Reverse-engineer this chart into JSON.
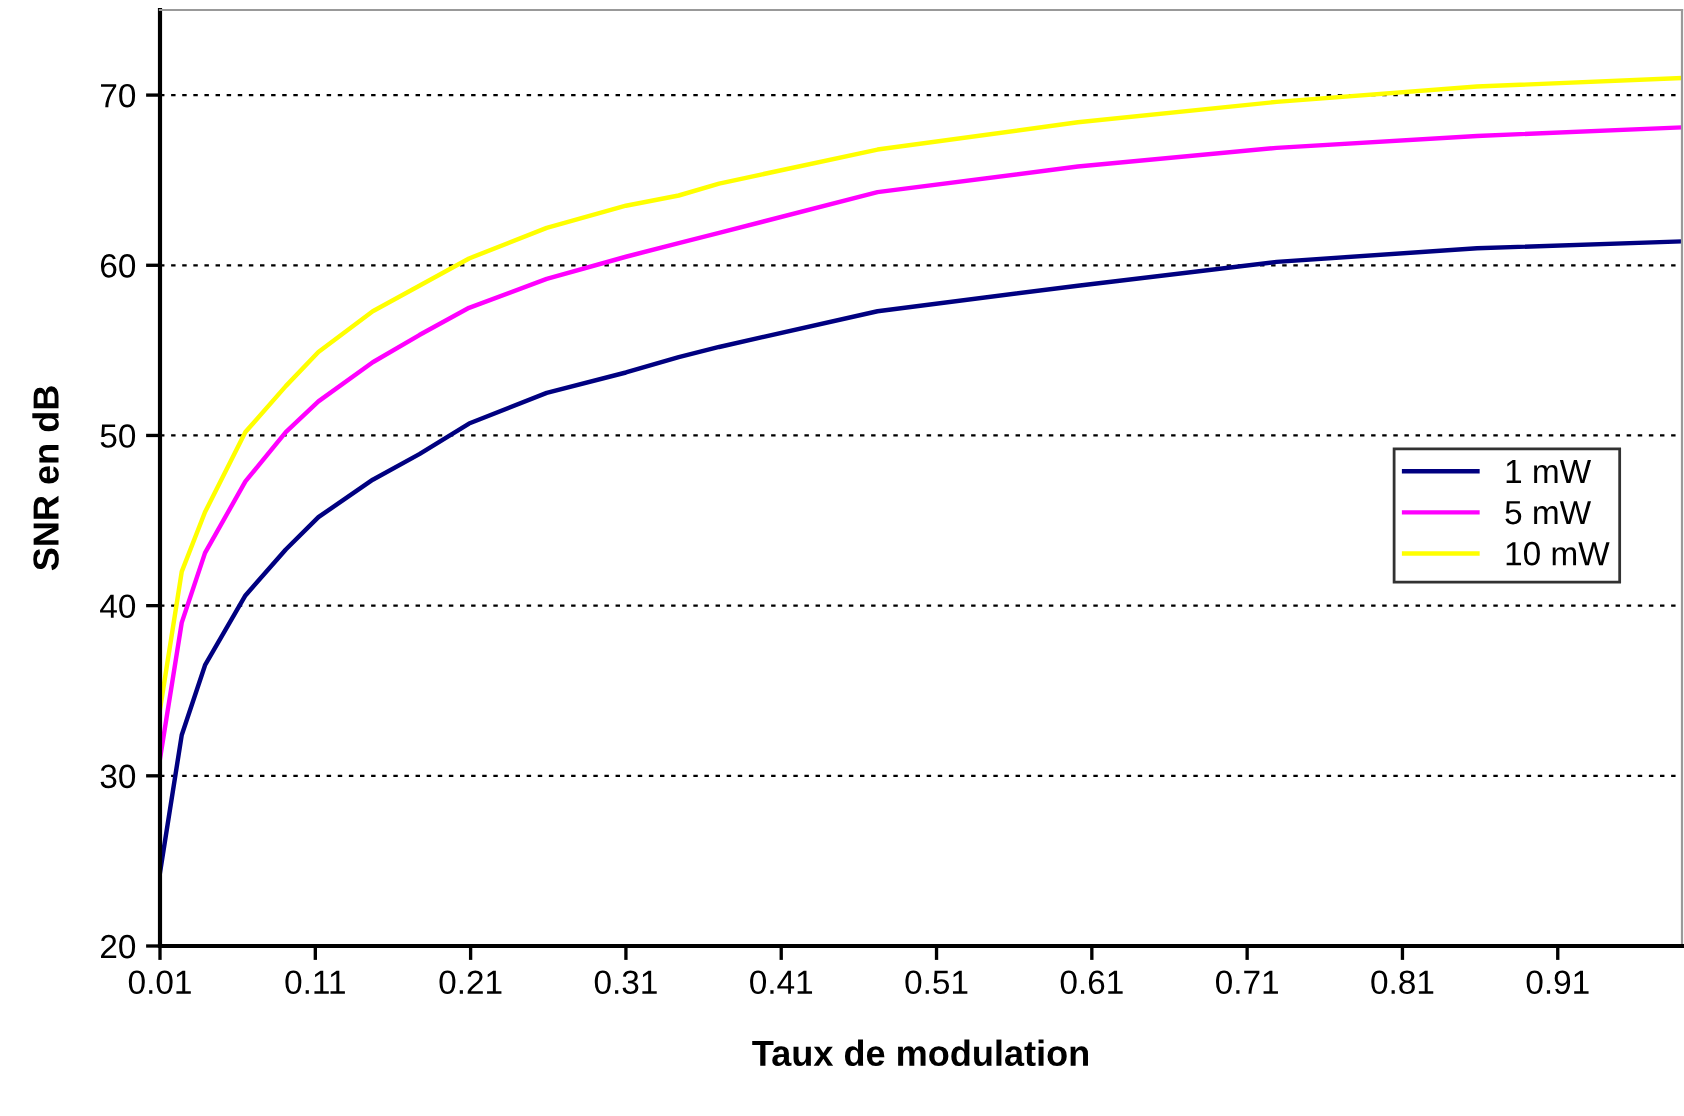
{
  "chart_data": {
    "type": "line",
    "xlabel": "Taux de modulation",
    "ylabel": "SNR en dB",
    "xlim": [
      0.01,
      0.99
    ],
    "xticks": [
      0.01,
      0.11,
      0.21,
      0.31,
      0.41,
      0.51,
      0.61,
      0.71,
      0.81,
      0.91
    ],
    "ylim": [
      20,
      75
    ],
    "yticks": [
      20,
      30,
      40,
      50,
      60,
      70
    ],
    "grid": "y",
    "legend": "right",
    "marker": "none",
    "line_style": "solid",
    "x": [
      0.01,
      0.024,
      0.039,
      0.065,
      0.091,
      0.112,
      0.147,
      0.177,
      0.209,
      0.259,
      0.31,
      0.344,
      0.37,
      0.472,
      0.601,
      0.729,
      0.858,
      0.989
    ],
    "series": [
      {
        "name": "1 mW",
        "color": "#000080",
        "values": [
          24.3,
          32.4,
          36.5,
          40.6,
          43.3,
          45.2,
          47.4,
          48.9,
          50.7,
          52.5,
          53.7,
          54.6,
          55.2,
          57.3,
          58.8,
          60.2,
          61.0,
          61.4
        ]
      },
      {
        "name": "5 mW",
        "color": "#ff00ff",
        "values": [
          31.0,
          39.0,
          43.1,
          47.3,
          50.2,
          52.0,
          54.3,
          55.9,
          57.5,
          59.2,
          60.5,
          61.3,
          61.9,
          64.3,
          65.8,
          66.9,
          67.6,
          68.1
        ]
      },
      {
        "name": "10 mW",
        "color": "#ffff00",
        "values": [
          33.9,
          42.0,
          45.5,
          50.2,
          52.9,
          54.9,
          57.3,
          58.8,
          60.4,
          62.2,
          63.5,
          64.1,
          64.8,
          66.8,
          68.4,
          69.6,
          70.5,
          71.0
        ]
      }
    ]
  }
}
